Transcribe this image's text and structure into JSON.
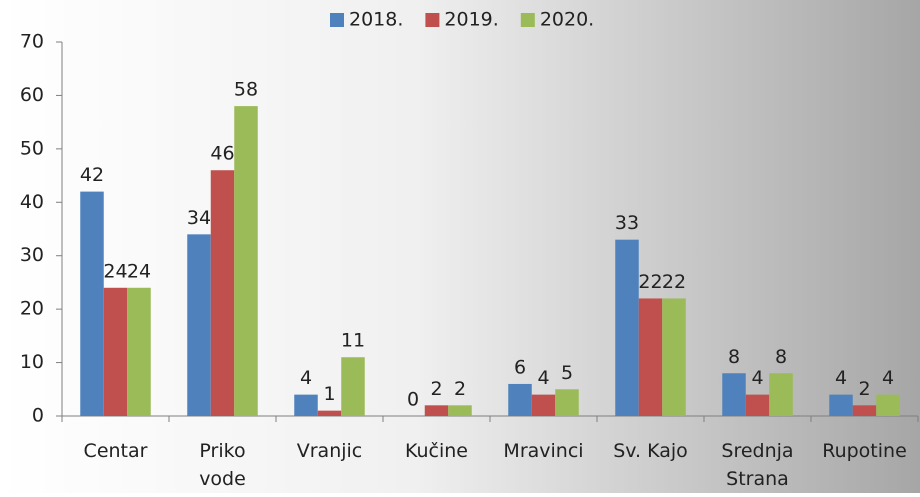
{
  "chart_data": {
    "type": "bar",
    "categories": [
      "Centar",
      "Priko\nvode",
      "Vranjic",
      "Kučine",
      "Mravinci",
      "Sv. Kajo",
      "Srednja\nStrana",
      "Rupotine"
    ],
    "series": [
      {
        "name": "2018.",
        "color": "#4f81bd",
        "values": [
          42,
          34,
          4,
          0,
          6,
          33,
          8,
          4
        ]
      },
      {
        "name": "2019.",
        "color": "#c0504d",
        "values": [
          24,
          46,
          1,
          2,
          4,
          22,
          4,
          2
        ]
      },
      {
        "name": "2020.",
        "color": "#9bbb59",
        "values": [
          24,
          58,
          11,
          2,
          5,
          22,
          8,
          4
        ]
      }
    ],
    "ylim": [
      0,
      70
    ],
    "yticks": [
      0,
      10,
      20,
      30,
      40,
      50,
      60,
      70
    ],
    "legend": "top"
  }
}
